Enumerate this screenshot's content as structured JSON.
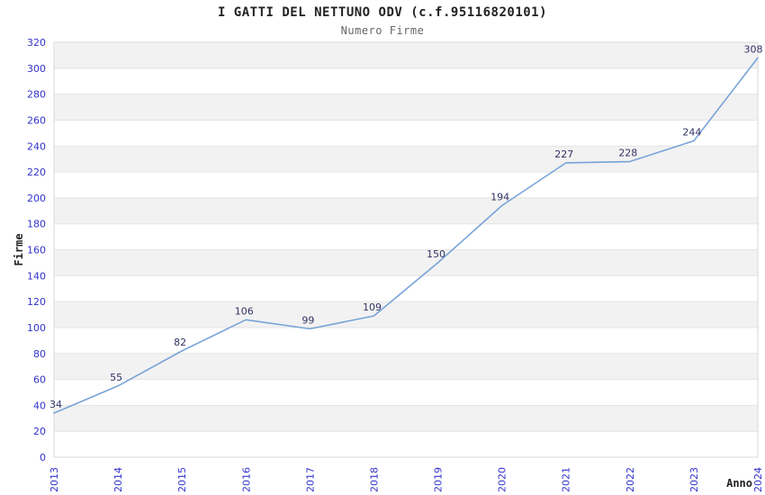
{
  "chart_data": {
    "type": "line",
    "title": "I GATTI DEL NETTUNO ODV (c.f.95116820101)",
    "subtitle": "Numero Firme",
    "xlabel": "Anno",
    "ylabel": "Firme",
    "categories": [
      "2013",
      "2014",
      "2015",
      "2016",
      "2017",
      "2018",
      "2019",
      "2020",
      "2021",
      "2022",
      "2023",
      "2024"
    ],
    "values": [
      34,
      55,
      82,
      106,
      99,
      109,
      150,
      194,
      227,
      228,
      244,
      308
    ],
    "ylim": [
      0,
      320
    ],
    "yticks": [
      0,
      20,
      40,
      60,
      80,
      100,
      120,
      140,
      160,
      180,
      200,
      220,
      240,
      260,
      280,
      300,
      320
    ],
    "grid": true,
    "legend": "none",
    "colors": {
      "line": "#78a4d8",
      "tick_label": "#3333cc",
      "data_label": "#333366",
      "band_gray": "#f2f2f2",
      "band_white": "#ffffff",
      "grid_line": "#e4e4e4",
      "plot_border": "#d9d9d9",
      "title": "#222222",
      "subtitle": "#666666",
      "axis_title": "#222222"
    }
  }
}
